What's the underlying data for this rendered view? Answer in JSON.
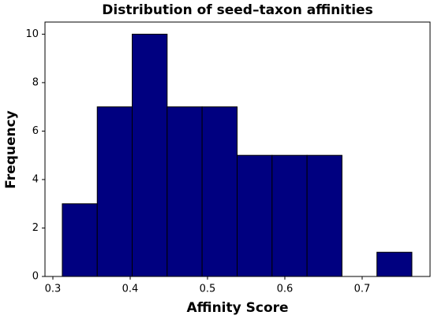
{
  "chart_data": {
    "type": "histogram",
    "title": "Distribution of seed–taxon affinities",
    "x_label": "Affinity Score",
    "y_label": "Frequency",
    "bins": [
      0.3122,
      0.3574,
      0.4026,
      0.4478,
      0.493,
      0.5383,
      0.5835,
      0.6287,
      0.6739,
      0.7191,
      0.7643
    ],
    "values": [
      3,
      7,
      10,
      7,
      7,
      5,
      5,
      5,
      0,
      1
    ],
    "color": "#000080",
    "edgecolor": "#000000",
    "xlim": [
      0.2898,
      0.7878
    ],
    "xticks": [
      0.3,
      0.4,
      0.5,
      0.6,
      0.7
    ],
    "ylim": [
      0,
      10.5
    ],
    "yticks": [
      0,
      2,
      4,
      6,
      8,
      10
    ]
  }
}
